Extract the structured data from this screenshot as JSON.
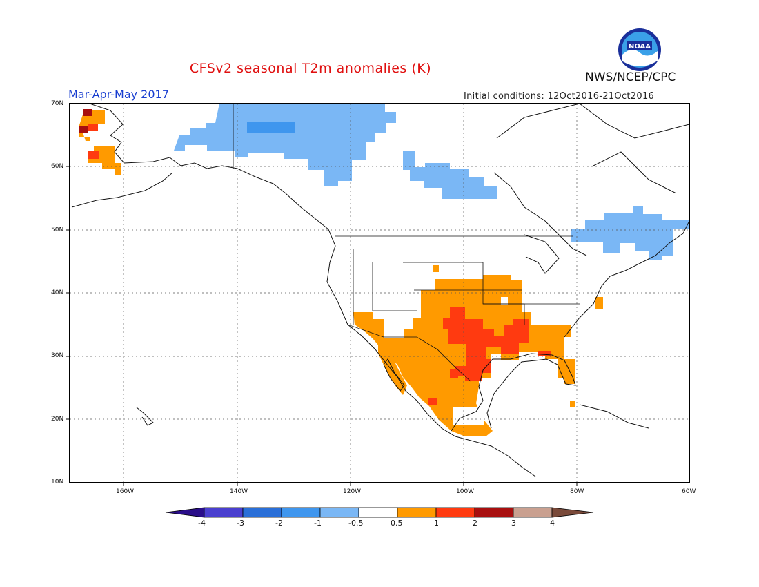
{
  "header": {
    "title": "CFSv2 seasonal T2m anomalies (K)",
    "agency": "NWS/NCEP/CPC",
    "season": "Mar-Apr-May 2017",
    "initial_conditions": "Initial conditions: 12Oct2016-21Oct2016",
    "logo_text": "NOAA"
  },
  "map": {
    "projection": "lat-lon",
    "lon_range": [
      -171,
      -60
    ],
    "lat_range": [
      10,
      70
    ],
    "y_ticks": [
      "10N",
      "20N",
      "30N",
      "40N",
      "50N",
      "60N",
      "70N"
    ],
    "x_ticks": [
      "160W",
      "140W",
      "120W",
      "100W",
      "80W",
      "60W"
    ]
  },
  "colorbar": {
    "labels": [
      "-4",
      "-3",
      "-2",
      "-1",
      "-0.5",
      "0.5",
      "1",
      "2",
      "3",
      "4"
    ],
    "colors": [
      "#2a0e8a",
      "#4a3fcf",
      "#2a6fd8",
      "#3f96ee",
      "#7ab7f5",
      "#ffffff",
      "#ff9a00",
      "#ff3a10",
      "#a80f0f",
      "#c9a090",
      "#7a4a3a"
    ]
  },
  "colors": {
    "cold_light": "#7ab7f5",
    "cold_medium": "#3f96ee",
    "warm_light": "#ff9a00",
    "warm_medium": "#ff3a10",
    "warm_strong": "#a80f0f"
  }
}
